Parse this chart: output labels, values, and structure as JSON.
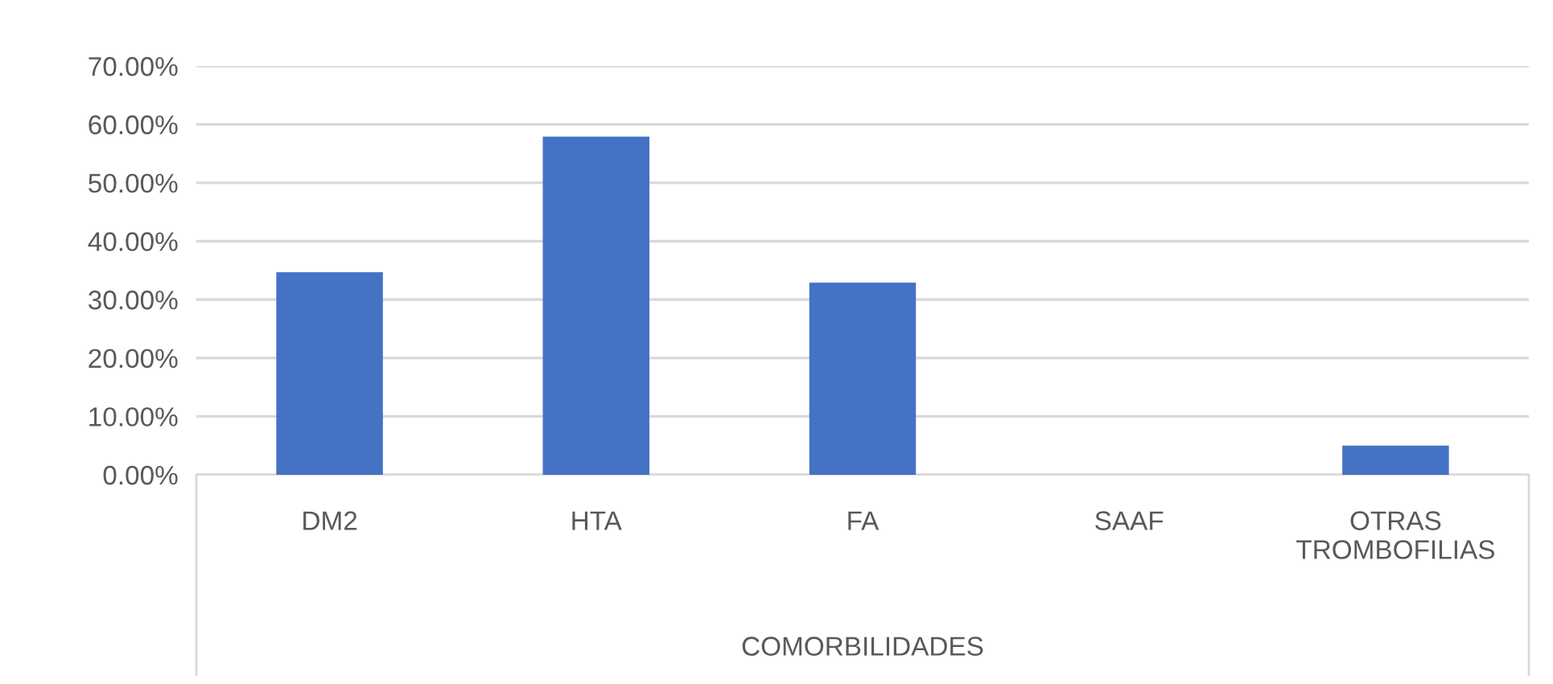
{
  "chart_data": {
    "type": "bar",
    "categories": [
      "DM2",
      "HTA",
      "FA",
      "SAAF",
      "OTRAS\nTROMBOFILIAS"
    ],
    "values": [
      34.7,
      57.9,
      32.9,
      0,
      5.0
    ],
    "color": "#4472c4",
    "xlabel": "COMORBILIDADES",
    "ylim": [
      0,
      70
    ],
    "yticks": [
      {
        "value": 0,
        "label": "0.00%"
      },
      {
        "value": 10,
        "label": "10.00%"
      },
      {
        "value": 20,
        "label": "20.00%"
      },
      {
        "value": 30,
        "label": "30.00%"
      },
      {
        "value": 40,
        "label": "40.00%"
      },
      {
        "value": 50,
        "label": "50.00%"
      },
      {
        "value": 60,
        "label": "60.00%"
      },
      {
        "value": 70,
        "label": "70.00%"
      }
    ],
    "grid": "y",
    "legend": false
  }
}
